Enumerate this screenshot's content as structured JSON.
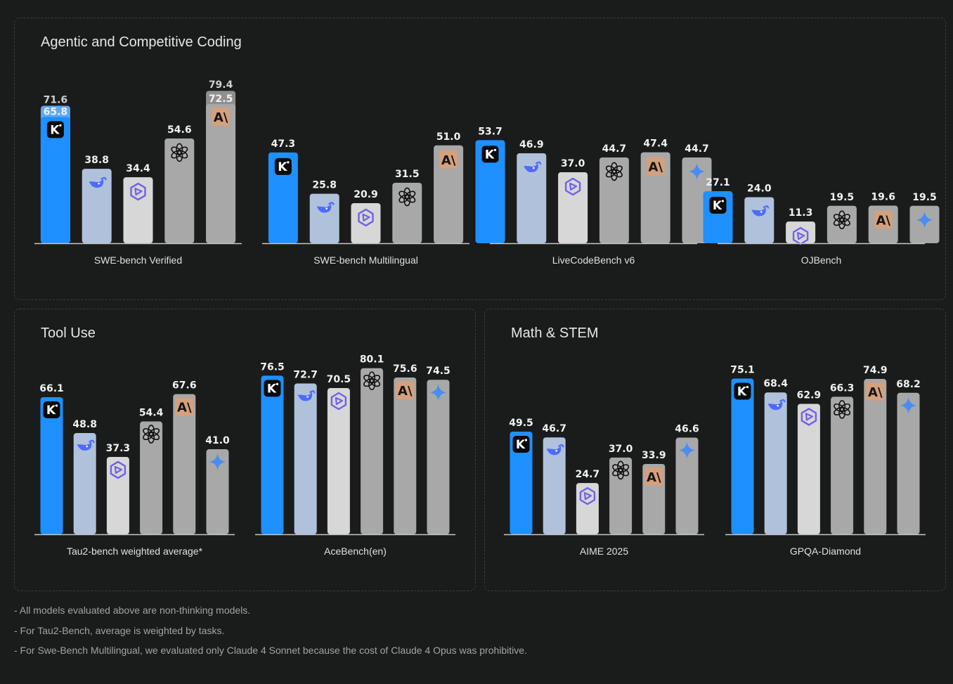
{
  "colors": {
    "kimi": "#1e90ff",
    "deepseek": "#b0c1dc",
    "qwen": "#d7d7d7",
    "other": "#a8a8a8",
    "anthropic_tag": "#d4a07d",
    "kimi_cap": "#5ea9f2",
    "opus_cap": "#8f8f8f",
    "value_text": "#f2f2f2",
    "cap_text": "#cfcfcf",
    "axis_line": "#c8c8c8",
    "category_text": "#e0e0e0",
    "panel_border": "#3b3d3d",
    "background": "#1a1b1b"
  },
  "panels": {
    "coding": {
      "title": "Agentic and Competitive Coding"
    },
    "tool": {
      "title": "Tool Use"
    },
    "math": {
      "title": "Math & STEM"
    }
  },
  "chart_data": [
    {
      "type": "bar",
      "category": "SWE-bench Verified",
      "ylim": [
        0,
        85
      ],
      "bars": [
        {
          "model_icon": "kimi-icon",
          "value": 65.8,
          "cap_value": 71.6,
          "label": "65.8",
          "cap_label": "71.6"
        },
        {
          "model_icon": "deepseek-icon",
          "value": 38.8,
          "label": "38.8"
        },
        {
          "model_icon": "qwen-icon",
          "value": 34.4,
          "label": "34.4"
        },
        {
          "model_icon": "openai-icon",
          "value": 54.6,
          "label": "54.6"
        },
        {
          "model_icon": "anthropic-icon",
          "value": 72.5,
          "cap_value": 79.4,
          "label": "72.5",
          "cap_label": "79.4"
        }
      ]
    },
    {
      "type": "bar",
      "category": "SWE-bench Multilingual",
      "ylim": [
        0,
        85
      ],
      "bars": [
        {
          "model_icon": "kimi-icon",
          "value": 47.3,
          "label": "47.3"
        },
        {
          "model_icon": "deepseek-icon",
          "value": 25.8,
          "label": "25.8"
        },
        {
          "model_icon": "qwen-icon",
          "value": 20.9,
          "label": "20.9"
        },
        {
          "model_icon": "openai-icon",
          "value": 31.5,
          "label": "31.5"
        },
        {
          "model_icon": "anthropic-icon",
          "value": 51.0,
          "label": "51.0"
        }
      ]
    },
    {
      "type": "bar",
      "category": "LiveCodeBench v6",
      "ylim": [
        0,
        85
      ],
      "bars": [
        {
          "model_icon": "kimi-icon",
          "value": 53.7,
          "label": "53.7"
        },
        {
          "model_icon": "deepseek-icon",
          "value": 46.9,
          "label": "46.9"
        },
        {
          "model_icon": "qwen-icon",
          "value": 37.0,
          "label": "37.0"
        },
        {
          "model_icon": "openai-icon",
          "value": 44.7,
          "label": "44.7"
        },
        {
          "model_icon": "anthropic-icon",
          "value": 47.4,
          "label": "47.4"
        },
        {
          "model_icon": "gemini-icon",
          "value": 44.7,
          "label": "44.7"
        }
      ]
    },
    {
      "type": "bar",
      "category": "OJBench",
      "ylim": [
        0,
        85
      ],
      "bars": [
        {
          "model_icon": "kimi-icon",
          "value": 27.1,
          "label": "27.1"
        },
        {
          "model_icon": "deepseek-icon",
          "value": 24.0,
          "label": "24.0"
        },
        {
          "model_icon": "qwen-icon",
          "value": 11.3,
          "label": "11.3"
        },
        {
          "model_icon": "openai-icon",
          "value": 19.5,
          "label": "19.5"
        },
        {
          "model_icon": "anthropic-icon",
          "value": 19.6,
          "label": "19.6"
        },
        {
          "model_icon": "gemini-icon",
          "value": 19.5,
          "label": "19.5"
        }
      ]
    },
    {
      "type": "bar",
      "category": "Tau2-bench weighted average*",
      "ylim": [
        0,
        97
      ],
      "bars": [
        {
          "model_icon": "kimi-icon",
          "value": 66.1,
          "label": "66.1"
        },
        {
          "model_icon": "deepseek-icon",
          "value": 48.8,
          "label": "48.8"
        },
        {
          "model_icon": "qwen-icon",
          "value": 37.3,
          "label": "37.3"
        },
        {
          "model_icon": "openai-icon",
          "value": 54.4,
          "label": "54.4"
        },
        {
          "model_icon": "anthropic-icon",
          "value": 67.6,
          "label": "67.6"
        },
        {
          "model_icon": "gemini-icon",
          "value": 41.0,
          "label": "41.0"
        }
      ]
    },
    {
      "type": "bar",
      "category": "AceBench(en)",
      "ylim": [
        0,
        97
      ],
      "bars": [
        {
          "model_icon": "kimi-icon",
          "value": 76.5,
          "label": "76.5"
        },
        {
          "model_icon": "deepseek-icon",
          "value": 72.7,
          "label": "72.7"
        },
        {
          "model_icon": "qwen-icon",
          "value": 70.5,
          "label": "70.5"
        },
        {
          "model_icon": "openai-icon",
          "value": 80.1,
          "label": "80.1"
        },
        {
          "model_icon": "anthropic-icon",
          "value": 75.6,
          "label": "75.6"
        },
        {
          "model_icon": "gemini-icon",
          "value": 74.5,
          "label": "74.5"
        }
      ]
    },
    {
      "type": "bar",
      "category": "AIME 2025",
      "ylim": [
        0,
        97
      ],
      "bars": [
        {
          "model_icon": "kimi-icon",
          "value": 49.5,
          "label": "49.5"
        },
        {
          "model_icon": "deepseek-icon",
          "value": 46.7,
          "label": "46.7"
        },
        {
          "model_icon": "qwen-icon",
          "value": 24.7,
          "label": "24.7"
        },
        {
          "model_icon": "openai-icon",
          "value": 37.0,
          "label": "37.0"
        },
        {
          "model_icon": "anthropic-icon",
          "value": 33.9,
          "label": "33.9"
        },
        {
          "model_icon": "gemini-icon",
          "value": 46.6,
          "label": "46.6"
        }
      ]
    },
    {
      "type": "bar",
      "category": "GPQA-Diamond",
      "ylim": [
        0,
        97
      ],
      "bars": [
        {
          "model_icon": "kimi-icon",
          "value": 75.1,
          "label": "75.1"
        },
        {
          "model_icon": "deepseek-icon",
          "value": 68.4,
          "label": "68.4"
        },
        {
          "model_icon": "qwen-icon",
          "value": 62.9,
          "label": "62.9"
        },
        {
          "model_icon": "openai-icon",
          "value": 66.3,
          "label": "66.3"
        },
        {
          "model_icon": "anthropic-icon",
          "value": 74.9,
          "label": "74.9"
        },
        {
          "model_icon": "gemini-icon",
          "value": 68.2,
          "label": "68.2"
        }
      ]
    }
  ],
  "notes": [
    "- All models evaluated above are non-thinking models.",
    "- For Tau2-Bench, average is weighted by tasks.",
    "- For Swe-Bench Multilingual, we evaluated only Claude 4 Sonnet because the cost of Claude 4 Opus was prohibitive."
  ]
}
